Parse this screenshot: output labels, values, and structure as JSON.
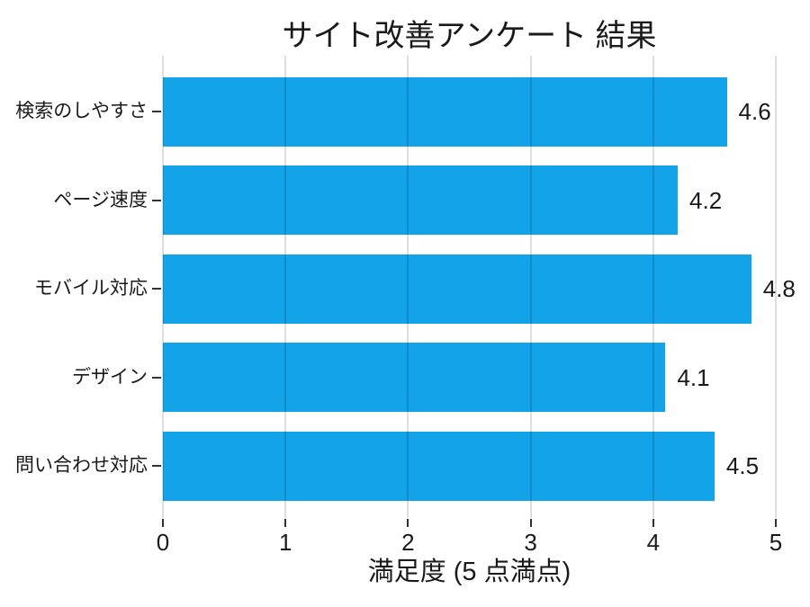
{
  "chart_data": {
    "type": "bar",
    "orientation": "horizontal",
    "title": "サイト改善アンケート 結果",
    "xlabel": "満足度 (5 点満点)",
    "ylabel": "",
    "categories": [
      "検索のしやすさ",
      "ページ速度",
      "モバイル対応",
      "デザイン",
      "問い合わせ対応"
    ],
    "values": [
      4.6,
      4.2,
      4.8,
      4.1,
      4.5
    ],
    "value_labels": [
      "4.6",
      "4.2",
      "4.8",
      "4.1",
      "4.5"
    ],
    "xlim": [
      0,
      5
    ],
    "xticks": [
      0,
      1,
      2,
      3,
      4,
      5
    ],
    "xtick_labels": [
      "0",
      "1",
      "2",
      "3",
      "4",
      "5"
    ],
    "grid": true,
    "legend": false,
    "colors": {
      "bar": "#12a3e8",
      "grid": "#dddddd",
      "tick": "#333333",
      "text": "#1a1a1a",
      "background": "#ffffff"
    }
  }
}
